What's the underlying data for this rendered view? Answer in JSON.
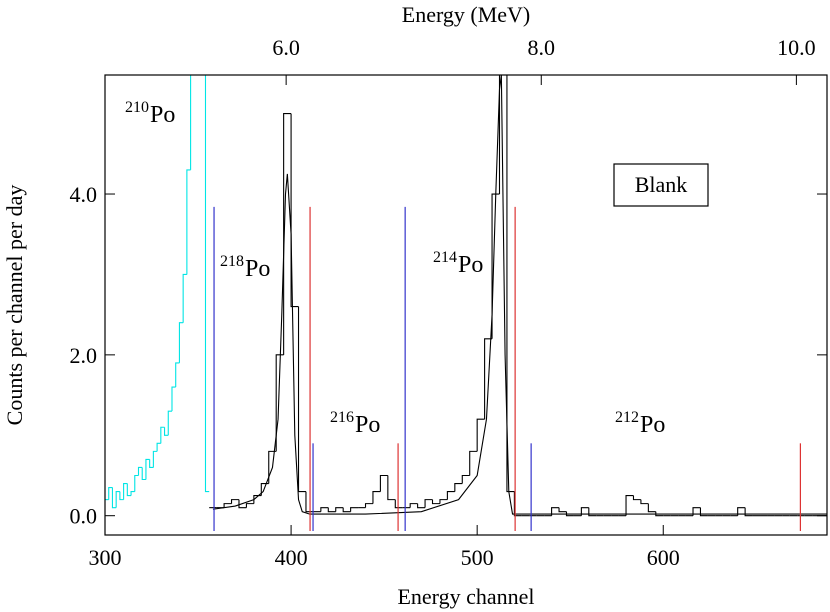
{
  "chart_data": {
    "type": "histogram",
    "title": "Energy (MeV)",
    "x_label": "Energy channel",
    "y_label": "Counts per channel per day",
    "xlim": [
      300,
      688
    ],
    "xticks": [
      300,
      400,
      500,
      600
    ],
    "x2lim": [
      4.58,
      10.24
    ],
    "x2ticks": [
      {
        "value": 6,
        "label": "6.0"
      },
      {
        "value": 8,
        "label": "8.0"
      },
      {
        "value": 10,
        "label": "10.0"
      }
    ],
    "ylim": [
      -0.24,
      5.48
    ],
    "yticks": [
      {
        "value": 0,
        "label": "0.0"
      },
      {
        "value": 2,
        "label": "2.0"
      },
      {
        "value": 4,
        "label": "4.0"
      }
    ],
    "series": [
      {
        "type": "histogram",
        "color": "#00e5e5",
        "bins": [
          300,
          302,
          304,
          306,
          308,
          310,
          312,
          314,
          316,
          318,
          320,
          322,
          324,
          326,
          328,
          330,
          332,
          334,
          336,
          338,
          340,
          342,
          344,
          346,
          348,
          350,
          352,
          354,
          356
        ],
        "values": [
          0.2,
          0.35,
          0.1,
          0.3,
          0.2,
          0.4,
          0.25,
          0.3,
          0.5,
          0.6,
          0.45,
          0.7,
          0.6,
          0.8,
          0.9,
          1.1,
          1.0,
          1.3,
          1.6,
          1.9,
          2.4,
          3.0,
          4.3,
          5.5,
          5.5,
          5.5,
          5.5,
          0.3
        ]
      },
      {
        "type": "histogram",
        "color": "#000000",
        "bins": [
          356,
          360,
          364,
          368,
          372,
          376,
          380,
          384,
          388,
          392,
          396,
          400,
          404,
          408,
          412,
          416,
          420,
          424,
          428,
          432,
          436,
          440,
          444,
          448,
          452,
          456,
          460,
          464,
          468,
          472,
          476,
          480,
          484,
          488,
          492,
          496,
          500,
          504,
          508,
          512,
          516,
          520,
          524,
          528,
          532,
          536,
          540,
          544,
          548,
          552,
          556,
          560,
          564,
          568,
          572,
          576,
          580,
          584,
          588,
          592,
          596,
          600,
          604,
          608,
          612,
          616,
          620,
          624,
          628,
          632,
          636,
          640,
          644,
          648,
          652,
          656,
          660,
          664,
          668,
          672,
          676,
          680,
          684,
          688
        ],
        "values": [
          0.1,
          0.1,
          0.15,
          0.2,
          0.1,
          0.15,
          0.25,
          0.4,
          0.8,
          2.0,
          5.0,
          2.6,
          0.3,
          0.05,
          0.05,
          0.1,
          0.05,
          0.1,
          0.05,
          0.1,
          0.1,
          0.15,
          0.3,
          0.5,
          0.2,
          0.1,
          0.1,
          0.15,
          0.1,
          0.2,
          0.15,
          0.2,
          0.3,
          0.4,
          0.5,
          0.8,
          1.2,
          2.2,
          4.0,
          5.5,
          0.3,
          0,
          0,
          0,
          0,
          0,
          0.1,
          0.05,
          0,
          0,
          0.1,
          0,
          0,
          0,
          0,
          0,
          0.25,
          0.2,
          0.15,
          0.05,
          0,
          0,
          0,
          0,
          0,
          0.1,
          0,
          0,
          0,
          0,
          0,
          0.1,
          0,
          0,
          0,
          0,
          0,
          0,
          0,
          0,
          0,
          0,
          0
        ]
      },
      {
        "type": "line",
        "color": "#000000",
        "x": [
          358,
          370,
          380,
          385,
          390,
          393,
          395,
          397,
          398,
          400,
          402,
          404,
          406,
          410,
          440,
          470,
          490,
          500,
          505,
          508,
          510,
          512,
          513,
          515,
          517,
          519,
          688
        ],
        "values": [
          0.08,
          0.12,
          0.2,
          0.3,
          0.6,
          1.2,
          2.5,
          4.0,
          4.25,
          3.5,
          1.0,
          0.2,
          0.05,
          0.02,
          0.02,
          0.05,
          0.2,
          0.5,
          1.2,
          2.5,
          4.0,
          5.3,
          5.48,
          2.0,
          0.3,
          0.02,
          0.02
        ]
      }
    ],
    "markers": [
      {
        "color": "#3333cc",
        "x": [
          358.6,
          411.8,
          461.3,
          529
        ],
        "values": [
          3.84,
          0.9,
          3.84,
          0.9
        ]
      },
      {
        "color": "#dd3333",
        "x": [
          410.2,
          457.5,
          520.4,
          673.7
        ],
        "values": [
          3.84,
          0.9,
          3.84,
          0.9
        ]
      }
    ],
    "labels": [
      {
        "mass": "210",
        "element": "Po"
      },
      {
        "mass": "218",
        "element": "Po"
      },
      {
        "mass": "216",
        "element": "Po"
      },
      {
        "mass": "214",
        "element": "Po"
      },
      {
        "mass": "212",
        "element": "Po"
      }
    ],
    "box_label": "Blank"
  }
}
